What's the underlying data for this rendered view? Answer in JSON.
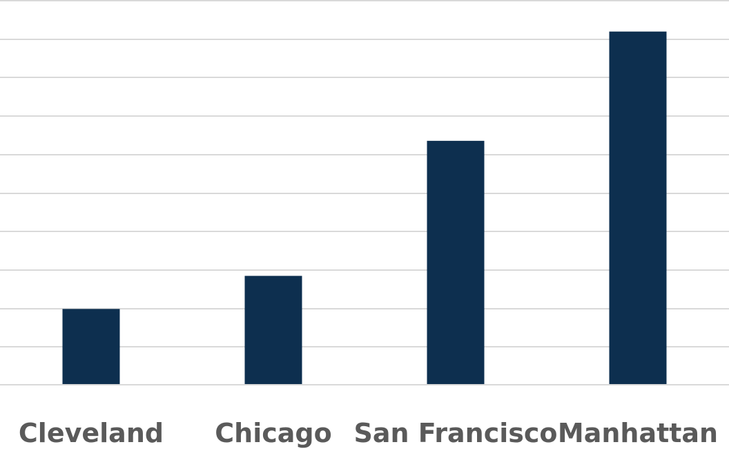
{
  "chart_data": {
    "type": "bar",
    "categories": [
      "Cleveland",
      "Chicago",
      "San Francisco",
      "Manhattan"
    ],
    "values": [
      1.97,
      2.83,
      6.34,
      9.18
    ],
    "title": "",
    "xlabel": "",
    "ylabel": "",
    "ylim": [
      0,
      10
    ],
    "grid": true,
    "legend": "none",
    "colors": {
      "bar": "#0d2f4f",
      "grid": "#d9d9d9",
      "label": "#5a5a5a",
      "background": "#ffffff"
    }
  }
}
